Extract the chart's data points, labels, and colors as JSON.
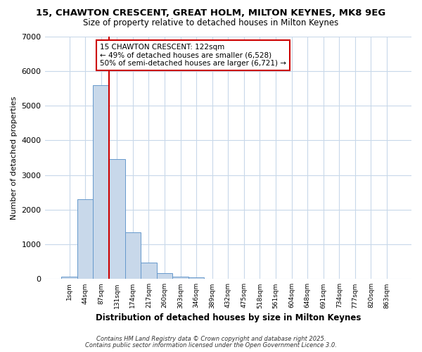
{
  "title_line1": "15, CHAWTON CRESCENT, GREAT HOLM, MILTON KEYNES, MK8 9EG",
  "title_line2": "Size of property relative to detached houses in Milton Keynes",
  "xlabel": "Distribution of detached houses by size in Milton Keynes",
  "ylabel": "Number of detached properties",
  "bin_labels": [
    "1sqm",
    "44sqm",
    "87sqm",
    "131sqm",
    "174sqm",
    "217sqm",
    "260sqm",
    "303sqm",
    "346sqm",
    "389sqm",
    "432sqm",
    "475sqm",
    "518sqm",
    "561sqm",
    "604sqm",
    "648sqm",
    "691sqm",
    "734sqm",
    "777sqm",
    "820sqm",
    "863sqm"
  ],
  "bar_values": [
    75,
    2300,
    5580,
    3450,
    1350,
    470,
    160,
    65,
    50,
    0,
    0,
    0,
    0,
    0,
    0,
    0,
    0,
    0,
    0,
    0,
    0
  ],
  "bar_color": "#c8d8ea",
  "bar_edge_color": "#6699cc",
  "fig_background": "#ffffff",
  "plot_background": "#ffffff",
  "grid_color": "#c8d8ea",
  "vline_x": 2.5,
  "vline_color": "#cc0000",
  "annotation_text": "15 CHAWTON CRESCENT: 122sqm\n← 49% of detached houses are smaller (6,528)\n50% of semi-detached houses are larger (6,721) →",
  "annotation_box_color": "#ffffff",
  "annotation_box_edge": "#cc0000",
  "ylim": [
    0,
    7000
  ],
  "yticks": [
    0,
    1000,
    2000,
    3000,
    4000,
    5000,
    6000,
    7000
  ],
  "footer_line1": "Contains HM Land Registry data © Crown copyright and database right 2025.",
  "footer_line2": "Contains public sector information licensed under the Open Government Licence 3.0."
}
